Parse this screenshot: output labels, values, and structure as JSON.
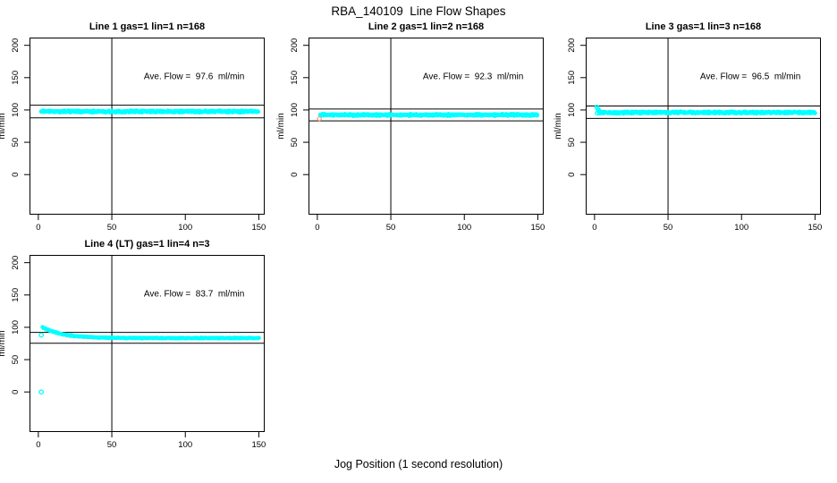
{
  "figure": {
    "title": "RBA_140109  Line Flow Shapes",
    "xlabel": "Jog Position (1 second resolution)",
    "ylabel": "ml/min",
    "background": "#FFFFFF",
    "point_color": "#00FFFF",
    "outlier_color": "#FFA07A",
    "line_color": "#000000"
  },
  "chart_data": [
    {
      "type": "scatter",
      "title": "Line 1 gas=1 lin=1 n=168",
      "annotation": "Ave. Flow =  97.6  ml/min",
      "ave_flow_ml_min": 97.6,
      "n": 168,
      "xlim": [
        0,
        150
      ],
      "ylim": [
        0,
        200
      ],
      "xticks": [
        0,
        50,
        100,
        150
      ],
      "yticks": [
        0,
        50,
        100,
        150,
        200
      ],
      "vline_x": 50,
      "hlines": [
        107.4,
        87.8
      ],
      "series": {
        "shape": "flat",
        "x_start": 2,
        "x_end": 150,
        "level": 97.6,
        "noise": 2.0,
        "per_step": 3,
        "step": 0.7
      },
      "extra_points": []
    },
    {
      "type": "scatter",
      "title": "Line 2 gas=1 lin=2 n=168",
      "annotation": "Ave. Flow =  92.3  ml/min",
      "ave_flow_ml_min": 92.3,
      "n": 168,
      "xlim": [
        0,
        150
      ],
      "ylim": [
        0,
        200
      ],
      "xticks": [
        0,
        50,
        100,
        150
      ],
      "yticks": [
        0,
        50,
        100,
        150,
        200
      ],
      "vline_x": 50,
      "hlines": [
        101.5,
        83.1
      ],
      "series": {
        "shape": "flat",
        "x_start": 2,
        "x_end": 150,
        "level": 92.3,
        "noise": 1.9,
        "per_step": 3,
        "step": 0.7
      },
      "extra_points": [
        {
          "x": 1.4,
          "y": 86.5,
          "r": 2.1,
          "color": "#FFA07A"
        }
      ]
    },
    {
      "type": "scatter",
      "title": "Line 3 gas=1 lin=3 n=168",
      "annotation": "Ave. Flow =  96.5  ml/min",
      "ave_flow_ml_min": 96.5,
      "n": 168,
      "xlim": [
        0,
        150
      ],
      "ylim": [
        0,
        200
      ],
      "xticks": [
        0,
        50,
        100,
        150
      ],
      "yticks": [
        0,
        50,
        100,
        150,
        200
      ],
      "vline_x": 50,
      "hlines": [
        106.2,
        86.9
      ],
      "series": {
        "shape": "flat",
        "x_start": 3,
        "x_end": 150,
        "level": 96.0,
        "noise": 2.0,
        "per_step": 3,
        "step": 0.7
      },
      "extra_points": [
        {
          "x": 1.5,
          "y": 104.5,
          "r": 2
        },
        {
          "x": 2.1,
          "y": 102.0,
          "r": 2
        },
        {
          "x": 2.7,
          "y": 100.0,
          "r": 2
        },
        {
          "x": 3.3,
          "y": 98.5,
          "r": 2
        },
        {
          "x": 1.7,
          "y": 95.0,
          "r": 2
        }
      ]
    },
    {
      "type": "scatter",
      "title": "Line 4 (LT) gas=1 lin=4 n=3",
      "annotation": "Ave. Flow =  83.7  ml/min",
      "ave_flow_ml_min": 83.7,
      "n": 3,
      "xlim": [
        0,
        150
      ],
      "ylim": [
        0,
        200
      ],
      "xticks": [
        0,
        50,
        100,
        150
      ],
      "yticks": [
        0,
        50,
        100,
        150,
        200
      ],
      "vline_x": 50,
      "hlines": [
        92.1,
        75.3
      ],
      "series": {
        "shape": "decay",
        "x_start": 3,
        "x_end": 150,
        "base": 83.3,
        "amp": 17,
        "tau": 13,
        "noise": 0.9,
        "per_step": 2,
        "step": 0.6
      },
      "extra_points": [
        {
          "x": 2,
          "y": 0,
          "r": 2.2
        },
        {
          "x": 2,
          "y": 88,
          "r": 2.2
        }
      ]
    }
  ]
}
